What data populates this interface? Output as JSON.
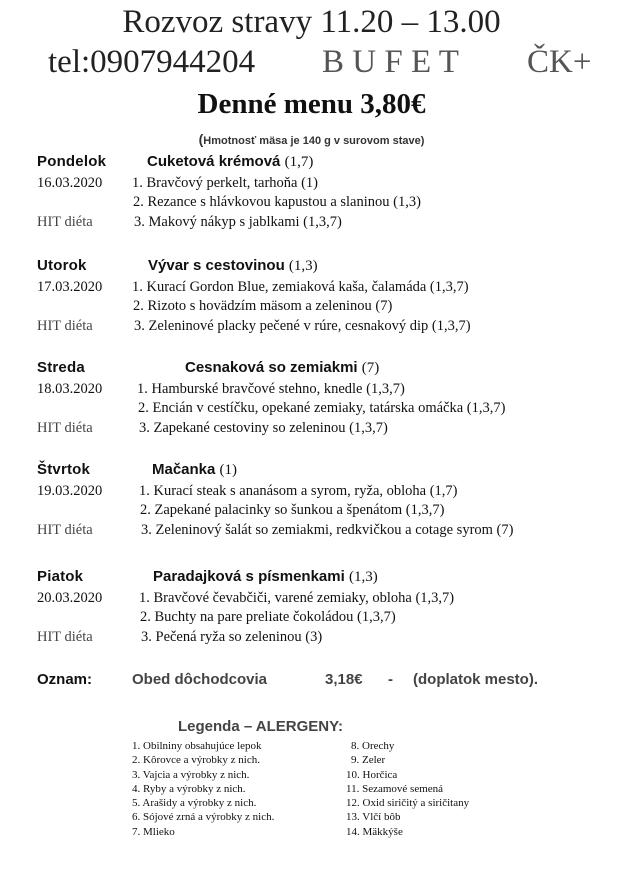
{
  "header": {
    "line1": "Rozvoz stravy 11.20 – 13.00",
    "phone": "tel:0907944204",
    "brand": "B U F E T",
    "brand2": "ČK+",
    "menu_title": "Denné menu 3,80€",
    "note_open": "(",
    "note": "Hmotnosť mäsa je 140 g v surovom stave)"
  },
  "days": [
    {
      "day": "Pondelok",
      "soup": "Cuketová krémová",
      "soup_allergens": "(1,7)",
      "date": "16.03.2020",
      "hit": "HIT diéta",
      "items": [
        "1. Bravčový perkelt, tarhoňa (1)",
        "2. Rezance s hlávkovou kapustou a slaninou (1,3)",
        "3. Makový nákyp s jablkami (1,3,7)"
      ]
    },
    {
      "day": "Utorok",
      "soup": "Vývar s cestovinou",
      "soup_allergens": "(1,3)",
      "date": "17.03.2020",
      "hit": "HIT diéta",
      "items": [
        "1. Kurací Gordon Blue, zemiaková kaša, čalamáda (1,3,7)",
        "2. Rizoto s hovädzím mäsom a zeleninou (7)",
        "3. Zeleninové placky pečené v rúre, cesnakový dip (1,3,7)"
      ]
    },
    {
      "day": "Streda",
      "soup": "Cesnaková so zemiakmi",
      "soup_allergens": "(7)",
      "date": "18.03.2020",
      "hit": "HIT diéta",
      "items": [
        "1. Hamburské bravčové stehno, knedle (1,3,7)",
        "2. Encián v cestíčku, opekané zemiaky, tatárska omáčka (1,3,7)",
        "3. Zapekané cestoviny so zeleninou (1,3,7)"
      ]
    },
    {
      "day": "Štvrtok",
      "soup": "Mačanka",
      "soup_allergens": "(1)",
      "date": "19.03.2020",
      "hit": "HIT diéta",
      "items": [
        "1. Kurací steak s ananásom a syrom, ryža, obloha (1,7)",
        "2. Zapekané palacinky so šunkou a špenátom (1,3,7)",
        "3. Zeleninový šalát so zemiakmi, redkvičkou a cotage syrom (7)"
      ]
    },
    {
      "day": "Piatok",
      "soup": "Paradajková s písmenkami",
      "soup_allergens": "(1,3)",
      "date": "20.03.2020",
      "hit": "HIT diéta",
      "items": [
        "1. Bravčové čevabčiči, varené zemiaky, obloha (1,3,7)",
        "2. Buchty na pare preliate čokoládou (1,3,7)",
        "3. Pečená ryža so zeleninou (3)"
      ]
    }
  ],
  "notice": {
    "label": "Oznam",
    "colon": ":",
    "text": "Obed dôchodcovia",
    "price": "3,18€",
    "dash": "-",
    "extra": "(doplatok mesto)."
  },
  "legend": {
    "title": "Legenda – ALERGENY:",
    "left": [
      "1. Obilniny obsahujúce lepok",
      "2. Kôrovce a výrobky z nich.",
      "3. Vajcia a výrobky z nich.",
      "4. Ryby a výrobky z nich.",
      "5. Arašidy a výrobky z nich.",
      "6. Sójové zrná a výrobky z nich.",
      "7. Mlieko"
    ],
    "right": [
      "8. Orechy",
      "9. Zeler",
      "10. Horčica",
      "11. Sezamové semená",
      "12. Oxid siričitý a siričitany",
      "13. Vlčí bôb",
      "14. Mäkkýše"
    ]
  }
}
